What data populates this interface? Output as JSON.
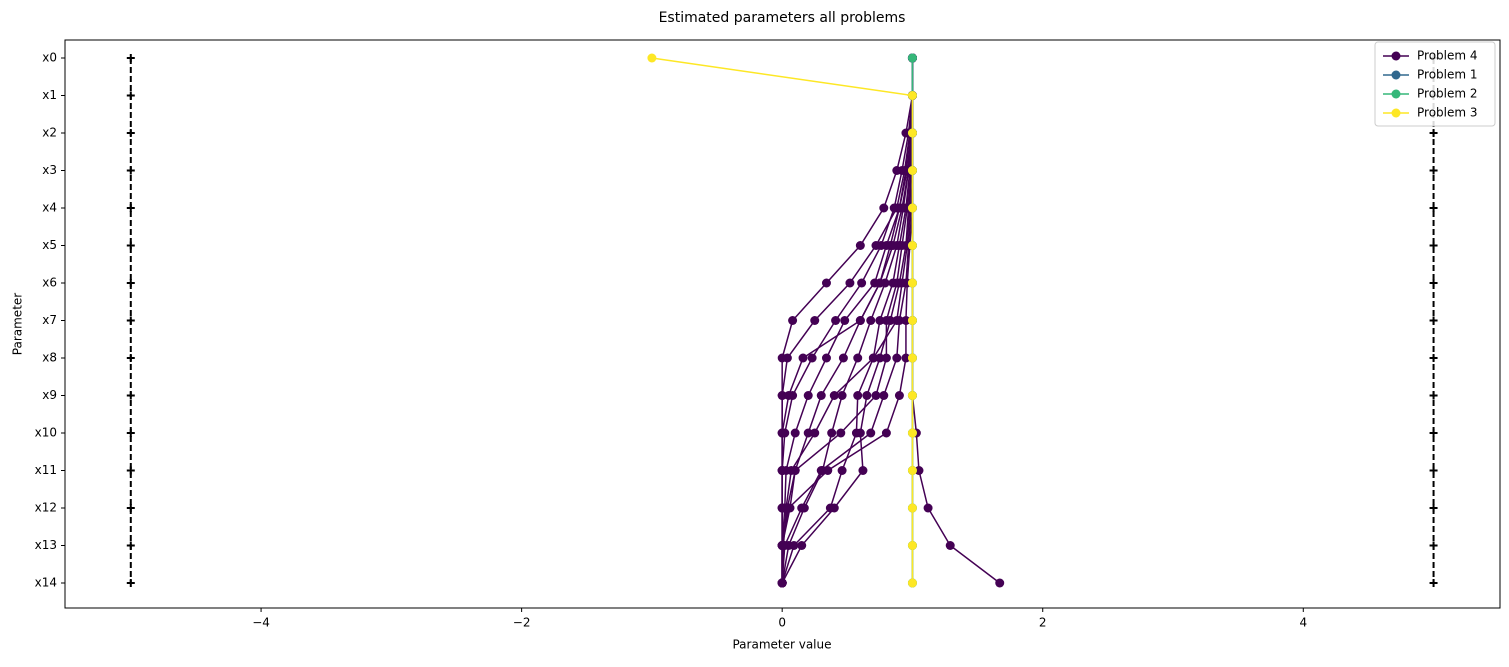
{
  "chart_data": {
    "type": "parameters",
    "title": "Estimated parameters all problems",
    "xlabel": "Parameter value",
    "ylabel": "Parameter",
    "categories": [
      "x0",
      "x1",
      "x2",
      "x3",
      "x4",
      "x5",
      "x6",
      "x7",
      "x8",
      "x9",
      "x10",
      "x11",
      "x12",
      "x13",
      "x14"
    ],
    "xlim": [
      -5.505,
      5.51
    ],
    "xticks": [
      {
        "value": -4,
        "label": "−4"
      },
      {
        "value": -2,
        "label": "−2"
      },
      0,
      2,
      4
    ],
    "bounds": {
      "color": "#000000",
      "lower": [
        -5,
        -5,
        -5,
        -5,
        -5,
        -5,
        -5,
        -5,
        -5,
        -5,
        -5,
        -5,
        -5,
        -5,
        -5
      ],
      "upper": [
        5,
        5,
        5,
        5,
        5,
        5,
        5,
        5,
        5,
        5,
        5,
        5,
        5,
        5,
        5
      ]
    },
    "legend": "upper right",
    "series": [
      {
        "name": "Problem 4",
        "color": "#440154",
        "values": [
          [
            1,
            1,
            1,
            1,
            1,
            1,
            1,
            1,
            1,
            1,
            1.03,
            1.05,
            1.12,
            1.29,
            1.67
          ],
          [
            1,
            1,
            0.98,
            0.95,
            0.9,
            0.83,
            0.75,
            0.6,
            0.47,
            0.3,
            0.2,
            0.1,
            0.04,
            0,
            0
          ],
          [
            1,
            1,
            0.97,
            0.92,
            0.86,
            0.76,
            0.61,
            0.41,
            0.23,
            0.08,
            0.02,
            0,
            0,
            0,
            0
          ],
          [
            1,
            1,
            0.95,
            0.88,
            0.78,
            0.6,
            0.34,
            0.08,
            0,
            0,
            0,
            0,
            0,
            0,
            0
          ],
          [
            1,
            1,
            0.99,
            0.97,
            0.93,
            0.88,
            0.79,
            0.68,
            0.58,
            0.46,
            0.38,
            0.31,
            0.17,
            0.05,
            0
          ],
          [
            1,
            1,
            0.99,
            0.98,
            0.95,
            0.9,
            0.85,
            0.75,
            0.7,
            0.58,
            0.57,
            0.46,
            0.37,
            0.09,
            0
          ],
          [
            1,
            1,
            1,
            0.99,
            0.97,
            0.95,
            0.9,
            0.83,
            0.75,
            0.65,
            0.6,
            0.62,
            0.4,
            0.15,
            0
          ],
          [
            1,
            1,
            1,
            1,
            0.99,
            0.97,
            0.95,
            0.9,
            0.88,
            0.78,
            0.68,
            0.3,
            0.15,
            0.02,
            0
          ],
          [
            1,
            1,
            0.98,
            0.94,
            0.88,
            0.72,
            0.52,
            0.25,
            0.04,
            0,
            0,
            0,
            0,
            0,
            0
          ],
          [
            1,
            1,
            0.99,
            0.96,
            0.9,
            0.8,
            0.71,
            0.48,
            0.34,
            0.2,
            0.1,
            0.03,
            0.02,
            0,
            0
          ],
          [
            1,
            1,
            1,
            0.98,
            0.96,
            0.92,
            0.88,
            0.8,
            0.8,
            0.72,
            0.45,
            0.1,
            0.06,
            0,
            0
          ],
          [
            1,
            1,
            1,
            1,
            1,
            0.98,
            0.96,
            0.95,
            0.95,
            0.9,
            0.8,
            0.35,
            0.05,
            0,
            0
          ],
          [
            1,
            1,
            0.99,
            0.97,
            0.92,
            0.85,
            0.75,
            0.6,
            0.16,
            0.05,
            0,
            0,
            0,
            0,
            0
          ],
          [
            1,
            1,
            1,
            0.99,
            0.98,
            0.96,
            0.92,
            0.88,
            0.7,
            0.4,
            0.25,
            0.07,
            0.03,
            0.01,
            0
          ]
        ]
      },
      {
        "name": "Problem 1",
        "color": "#31688e",
        "values": [
          [
            1,
            1,
            1,
            1,
            1,
            1,
            1,
            1,
            1,
            1,
            1,
            1,
            1,
            1,
            1
          ]
        ]
      },
      {
        "name": "Problem 2",
        "color": "#35b779",
        "values": [
          [
            1,
            1,
            1,
            1,
            1,
            1,
            1,
            1,
            1,
            1,
            1,
            1,
            1,
            1,
            1
          ]
        ]
      },
      {
        "name": "Problem 3",
        "color": "#fde725",
        "values": [
          [
            -1,
            1,
            1,
            1,
            1,
            1,
            1,
            1,
            1,
            1,
            1,
            1,
            1,
            1,
            1
          ]
        ]
      }
    ]
  }
}
